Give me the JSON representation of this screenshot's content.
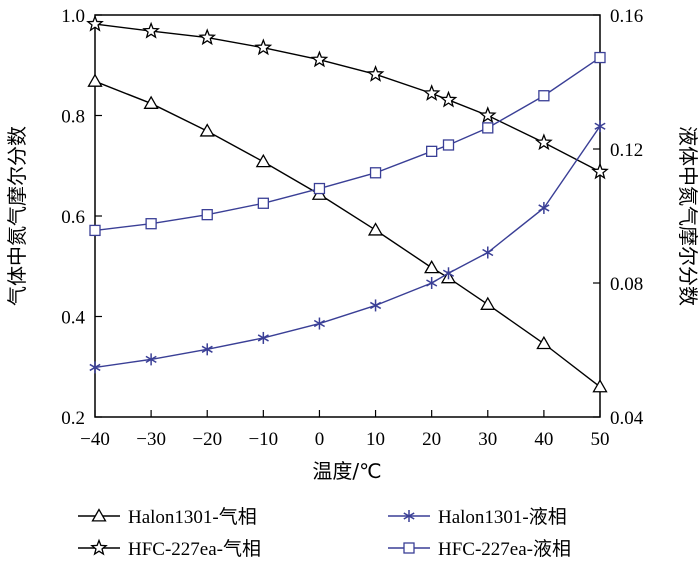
{
  "chart_data": {
    "type": "line",
    "x_axis": {
      "label": "温度/℃",
      "range": [
        -40,
        50
      ],
      "ticks": [
        "−40",
        "−30",
        "−20",
        "−10",
        "0",
        "10",
        "20",
        "30",
        "40",
        "50"
      ]
    },
    "y_left": {
      "label": "气体中氮气摩尔分数",
      "range": [
        0.2,
        1.0
      ],
      "ticks": [
        "0.2",
        "0.4",
        "0.6",
        "0.8",
        "1.0"
      ]
    },
    "y_right": {
      "label": "液体中氮气摩尔分数",
      "range": [
        0.04,
        0.16
      ],
      "ticks": [
        "0.04",
        "0.08",
        "0.12",
        "0.16"
      ]
    },
    "grid": false,
    "legend_position": "bottom",
    "series": [
      {
        "name": "Halon1301-气相",
        "axis": "left",
        "marker": "triangle",
        "color": "#000000",
        "x": [
          -40,
          -30,
          -20,
          -10,
          0,
          10,
          20,
          23,
          30,
          40,
          50
        ],
        "y": [
          0.868,
          0.824,
          0.769,
          0.708,
          0.643,
          0.572,
          0.497,
          0.477,
          0.424,
          0.346,
          0.26
        ]
      },
      {
        "name": "HFC-227ea-气相",
        "axis": "left",
        "marker": "star",
        "color": "#000000",
        "x": [
          -40,
          -30,
          -20,
          -10,
          0,
          10,
          20,
          23,
          30,
          40,
          50
        ],
        "y": [
          0.982,
          0.968,
          0.955,
          0.935,
          0.911,
          0.882,
          0.844,
          0.831,
          0.8,
          0.746,
          0.688
        ]
      },
      {
        "name": "Halon1301-液相",
        "axis": "right",
        "marker": "asterisk",
        "color": "#3a3f96",
        "x": [
          -40,
          -30,
          -20,
          -10,
          0,
          10,
          20,
          23,
          30,
          40,
          50
        ],
        "y": [
          0.0548,
          0.0572,
          0.0602,
          0.0636,
          0.0679,
          0.0733,
          0.08,
          0.0829,
          0.0891,
          0.1024,
          0.1268
        ]
      },
      {
        "name": "HFC-227ea-液相",
        "axis": "right",
        "marker": "square",
        "color": "#3a3f96",
        "x": [
          -40,
          -30,
          -20,
          -10,
          0,
          10,
          20,
          23,
          30,
          40,
          50
        ],
        "y": [
          0.0957,
          0.0977,
          0.1004,
          0.1038,
          0.1082,
          0.1129,
          0.1193,
          0.1212,
          0.1263,
          0.1359,
          0.1473
        ]
      }
    ]
  }
}
